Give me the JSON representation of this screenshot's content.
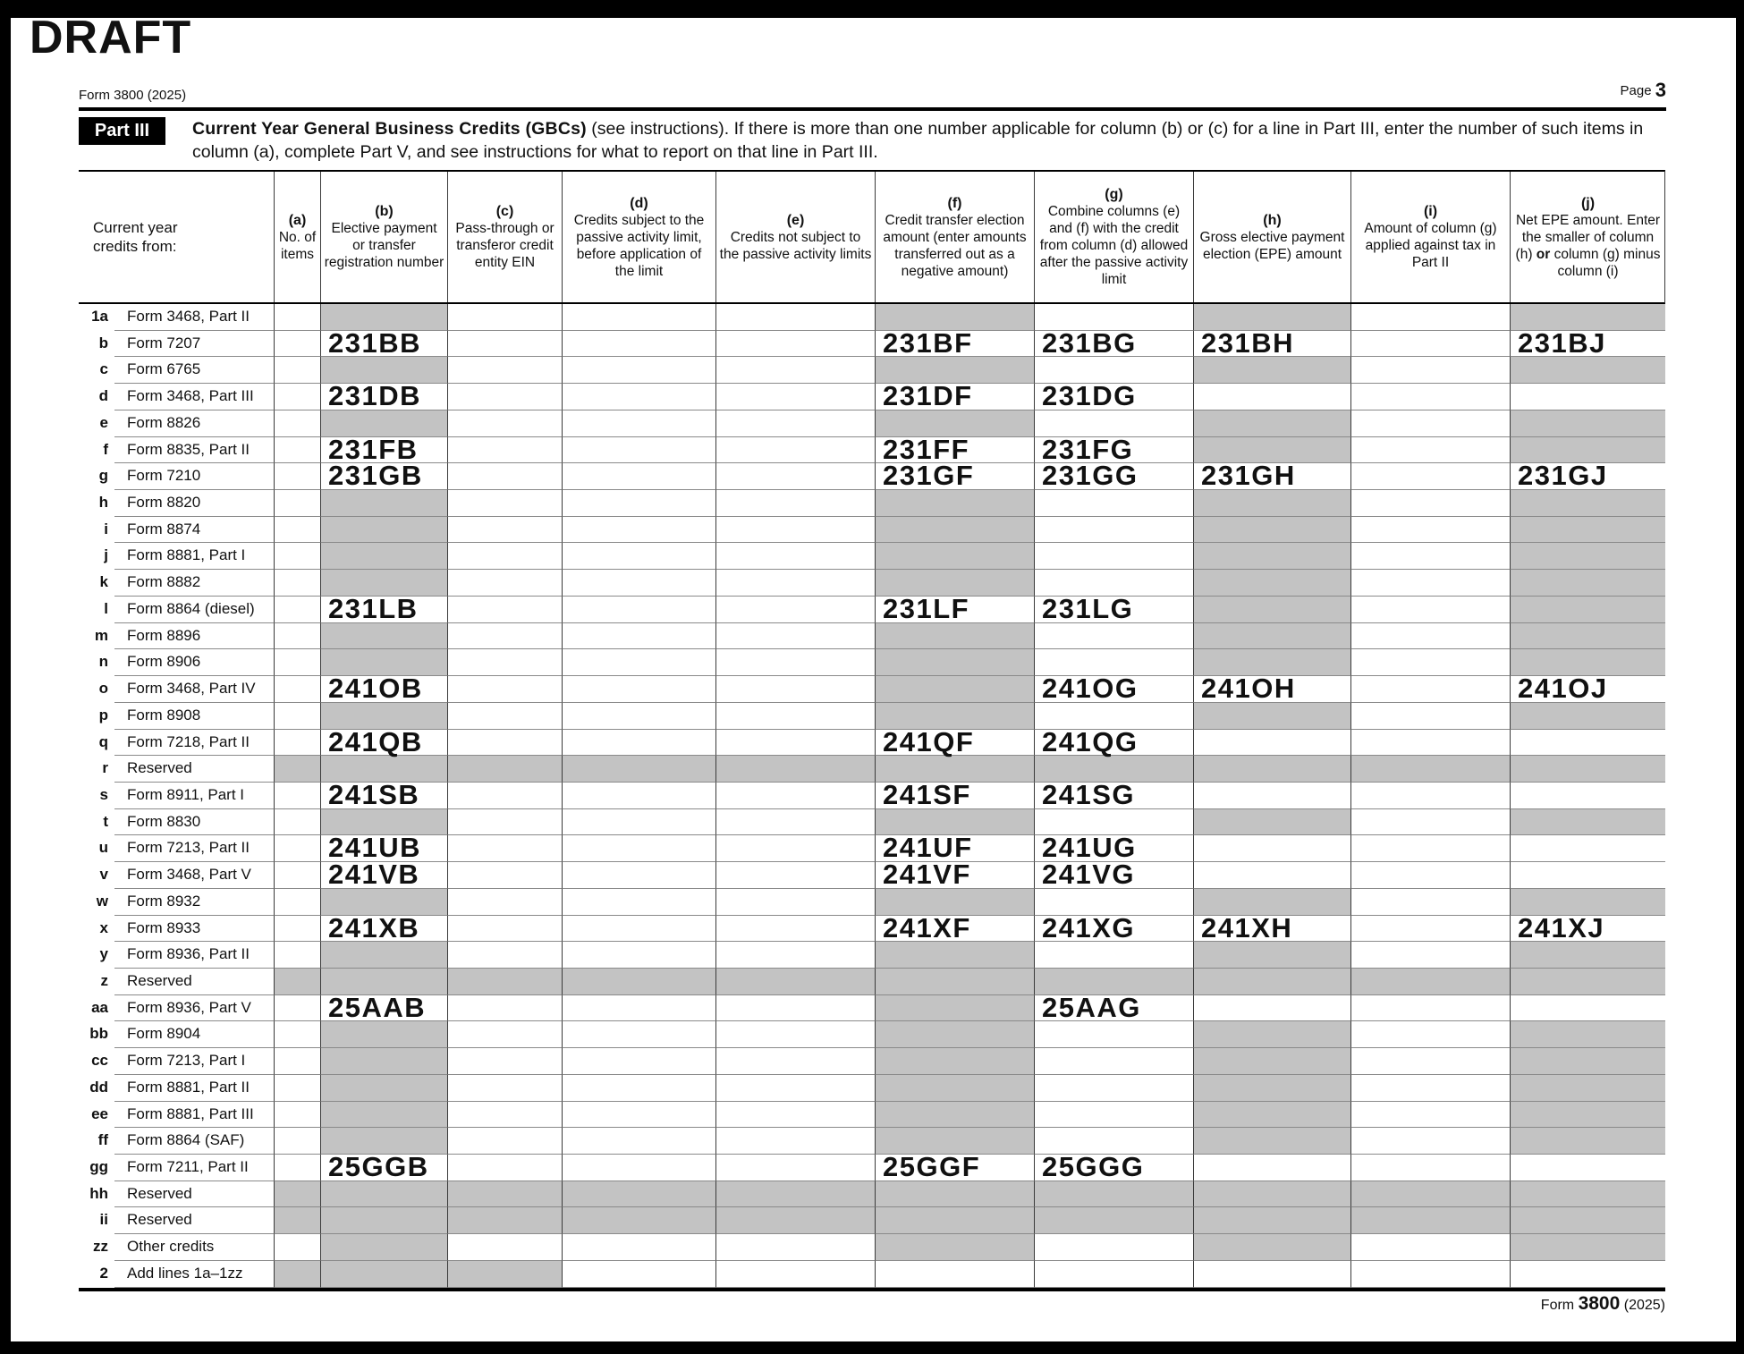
{
  "page": {
    "draft_label": "DRAFT",
    "form_id": "Form 3800 (2025)",
    "page_label": "Page",
    "page_number": "3",
    "footer": {
      "form_word": "Form ",
      "form_number": "3800",
      "form_year": " (2025)"
    }
  },
  "part3": {
    "part_label": "Part III",
    "title_bold": "Current Year General Business Credits (GBCs)",
    "title_rest": " (see instructions). If there is more than one number applicable for column (b) or (c) for a line in Part III, enter the number of such items in column (a), complete Part V, and see instructions for what to report on that line in Part III."
  },
  "table": {
    "row_header": "Current year credits from:",
    "colors": {
      "shaded_cell": "#c3c3c3"
    },
    "columns": [
      {
        "id": "a",
        "letter": "(a)",
        "desc": "No. of items"
      },
      {
        "id": "b",
        "letter": "(b)",
        "desc": "Elective payment or transfer registration number"
      },
      {
        "id": "c",
        "letter": "(c)",
        "desc": "Pass-through or transferor credit entity EIN"
      },
      {
        "id": "d",
        "letter": "(d)",
        "desc": "Credits subject to the passive activity limit, before application of the limit"
      },
      {
        "id": "e",
        "letter": "(e)",
        "desc": "Credits not subject to the passive activity limits"
      },
      {
        "id": "f",
        "letter": "(f)",
        "desc": "Credit transfer election amount (enter amounts transferred out as a negative amount)"
      },
      {
        "id": "g",
        "letter": "(g)",
        "desc": "Combine columns (e) and (f) with the credit from column (d) allowed after the passive activity limit"
      },
      {
        "id": "h",
        "letter": "(h)",
        "desc": "Gross elective payment election (EPE) amount"
      },
      {
        "id": "i",
        "letter": "(i)",
        "desc": "Amount of column (g) applied against tax in Part II"
      },
      {
        "id": "j",
        "letter": "(j)",
        "desc_parts": [
          "Net EPE amount. Enter the smaller of column (h) ",
          "or",
          " column (g) minus column (i)"
        ]
      }
    ],
    "rows": [
      {
        "num": "1a",
        "name": "Form 3468, Part II",
        "shade": [
          "b",
          "f",
          "h",
          "j"
        ],
        "codes": {}
      },
      {
        "num": "b",
        "name": "Form 7207",
        "shade": [],
        "codes": {
          "b": "231BB",
          "f": "231BF",
          "g": "231BG",
          "h": "231BH",
          "j": "231BJ"
        }
      },
      {
        "num": "c",
        "name": "Form 6765",
        "shade": [
          "b",
          "f",
          "h",
          "j"
        ],
        "codes": {}
      },
      {
        "num": "d",
        "name": "Form 3468, Part III",
        "shade": [],
        "codes": {
          "b": "231DB",
          "f": "231DF",
          "g": "231DG"
        }
      },
      {
        "num": "e",
        "name": "Form 8826",
        "shade": [
          "b",
          "f",
          "h",
          "j"
        ],
        "codes": {}
      },
      {
        "num": "f",
        "name": "Form 8835, Part II",
        "shade": [
          "h",
          "j"
        ],
        "codes": {
          "b": "231FB",
          "f": "231FF",
          "g": "231FG"
        }
      },
      {
        "num": "g",
        "name": "Form 7210",
        "shade": [],
        "codes": {
          "b": "231GB",
          "f": "231GF",
          "g": "231GG",
          "h": "231GH",
          "j": "231GJ"
        }
      },
      {
        "num": "h",
        "name": "Form 8820",
        "shade": [
          "b",
          "f",
          "h",
          "j"
        ],
        "codes": {}
      },
      {
        "num": "i",
        "name": "Form 8874",
        "shade": [
          "b",
          "f",
          "h",
          "j"
        ],
        "codes": {}
      },
      {
        "num": "j",
        "name": "Form 8881, Part I",
        "shade": [
          "b",
          "f",
          "h",
          "j"
        ],
        "codes": {}
      },
      {
        "num": "k",
        "name": "Form 8882",
        "shade": [
          "b",
          "f",
          "h",
          "j"
        ],
        "codes": {}
      },
      {
        "num": "l",
        "name": "Form 8864 (diesel)",
        "shade": [
          "h",
          "j"
        ],
        "codes": {
          "b": "231LB",
          "f": "231LF",
          "g": "231LG"
        }
      },
      {
        "num": "m",
        "name": "Form 8896",
        "shade": [
          "b",
          "f",
          "h",
          "j"
        ],
        "codes": {}
      },
      {
        "num": "n",
        "name": "Form 8906",
        "shade": [
          "b",
          "f",
          "h",
          "j"
        ],
        "codes": {}
      },
      {
        "num": "o",
        "name": "Form 3468, Part IV",
        "shade": [
          "f"
        ],
        "codes": {
          "b": "241OB",
          "g": "241OG",
          "h": "241OH",
          "j": "241OJ"
        }
      },
      {
        "num": "p",
        "name": "Form 8908",
        "shade": [
          "b",
          "f",
          "h",
          "j"
        ],
        "codes": {}
      },
      {
        "num": "q",
        "name": "Form 7218, Part II",
        "shade": [],
        "codes": {
          "b": "241QB",
          "f": "241QF",
          "g": "241QG"
        }
      },
      {
        "num": "r",
        "name": "Reserved",
        "reserved": true,
        "shade": [],
        "codes": {}
      },
      {
        "num": "s",
        "name": "Form 8911, Part I",
        "shade": [],
        "codes": {
          "b": "241SB",
          "f": "241SF",
          "g": "241SG"
        }
      },
      {
        "num": "t",
        "name": "Form 8830",
        "shade": [
          "b",
          "f",
          "h",
          "j"
        ],
        "codes": {}
      },
      {
        "num": "u",
        "name": "Form 7213, Part II",
        "shade": [],
        "codes": {
          "b": "241UB",
          "f": "241UF",
          "g": "241UG"
        }
      },
      {
        "num": "v",
        "name": "Form 3468, Part V",
        "shade": [],
        "codes": {
          "b": "241VB",
          "f": "241VF",
          "g": "241VG"
        }
      },
      {
        "num": "w",
        "name": "Form 8932",
        "shade": [
          "b",
          "f",
          "h",
          "j"
        ],
        "codes": {}
      },
      {
        "num": "x",
        "name": "Form 8933",
        "shade": [],
        "codes": {
          "b": "241XB",
          "f": "241XF",
          "g": "241XG",
          "h": "241XH",
          "j": "241XJ"
        }
      },
      {
        "num": "y",
        "name": "Form 8936, Part II",
        "shade": [
          "b",
          "f",
          "h",
          "j"
        ],
        "codes": {}
      },
      {
        "num": "z",
        "name": "Reserved",
        "reserved": true,
        "shade": [],
        "codes": {}
      },
      {
        "num": "aa",
        "name": "Form 8936, Part V",
        "shade": [
          "f"
        ],
        "codes": {
          "b": "25AAB",
          "g": "25AAG"
        }
      },
      {
        "num": "bb",
        "name": "Form 8904",
        "shade": [
          "b",
          "f",
          "h",
          "j"
        ],
        "codes": {}
      },
      {
        "num": "cc",
        "name": "Form 7213, Part I",
        "shade": [
          "b",
          "f",
          "h",
          "j"
        ],
        "codes": {}
      },
      {
        "num": "dd",
        "name": "Form 8881, Part II",
        "shade": [
          "b",
          "f",
          "h",
          "j"
        ],
        "codes": {}
      },
      {
        "num": "ee",
        "name": "Form 8881, Part III",
        "shade": [
          "b",
          "f",
          "h",
          "j"
        ],
        "codes": {}
      },
      {
        "num": "ff",
        "name": "Form 8864 (SAF)",
        "shade": [
          "b",
          "f",
          "h",
          "j"
        ],
        "codes": {}
      },
      {
        "num": "gg",
        "name": "Form 7211, Part II",
        "shade": [],
        "codes": {
          "b": "25GGB",
          "f": "25GGF",
          "g": "25GGG"
        }
      },
      {
        "num": "hh",
        "name": "Reserved",
        "reserved": true,
        "shade": [],
        "codes": {}
      },
      {
        "num": "ii",
        "name": "Reserved",
        "reserved": true,
        "shade": [],
        "codes": {}
      },
      {
        "num": "zz",
        "name": "Other credits",
        "shade": [
          "b",
          "f",
          "h",
          "j"
        ],
        "codes": {}
      },
      {
        "num": "2",
        "name": "Add lines 1a–1zz",
        "shade": [
          "a",
          "b",
          "c"
        ],
        "codes": {}
      }
    ]
  }
}
